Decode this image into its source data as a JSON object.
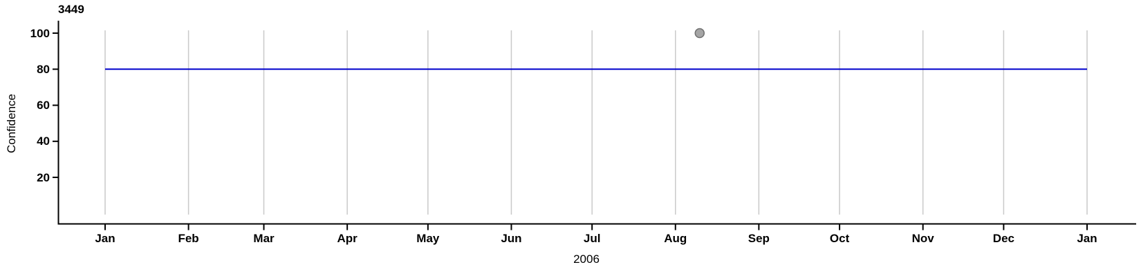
{
  "chart_data": {
    "type": "line",
    "title": "3449",
    "ylabel": "Confidence",
    "xlabel_year": "2006",
    "x_tick_labels": [
      "Jan",
      "Feb",
      "Mar",
      "Apr",
      "May",
      "Jun",
      "Jul",
      "Aug",
      "Sep",
      "Oct",
      "Nov",
      "Dec",
      "Jan"
    ],
    "x_tick_days": [
      0,
      31,
      59,
      90,
      120,
      151,
      181,
      212,
      243,
      273,
      304,
      334,
      365
    ],
    "xlim_days": [
      -17,
      383
    ],
    "y_ticks": [
      20,
      40,
      60,
      80,
      100
    ],
    "ylim": [
      -0.6,
      101.6
    ],
    "grid": "vertical-month-lines",
    "legend": "none",
    "colors": {
      "axis": "#000000",
      "gridline": "#c9c9c9",
      "line": "#0000cc",
      "point_fill": "#a5a5a5",
      "point_stroke": "#707070",
      "background": "#ffffff"
    },
    "series": [
      {
        "name": "confidence-level-line",
        "kind": "line",
        "points": [
          {
            "x_day": 0,
            "y": 80
          },
          {
            "x_day": 365,
            "y": 80
          }
        ]
      },
      {
        "name": "event-marker",
        "kind": "point",
        "points": [
          {
            "x_day": 221,
            "y": 100
          }
        ]
      }
    ]
  }
}
